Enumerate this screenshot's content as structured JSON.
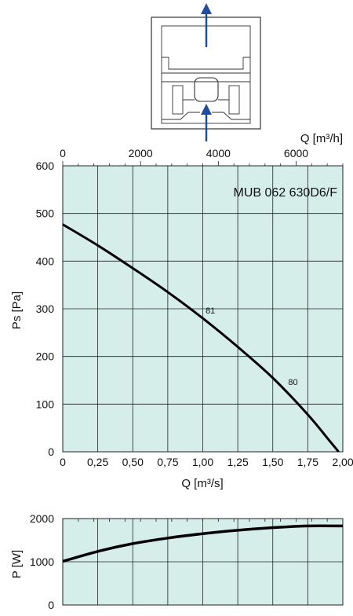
{
  "colors": {
    "plot_bg": "#d5eeea",
    "grid": "#222222",
    "curve": "#000000",
    "arrow": "#1f4f9c",
    "unit_outline": "#333333"
  },
  "unit_drawing": {
    "icon": "fan-unit-airflow-diagram"
  },
  "chart_data": [
    {
      "type": "line",
      "title": "MUB 062 630D6/F",
      "xlabel": "Q [m³/s]",
      "ylabel": "Ps [Pa]",
      "x2label": "Q [m³/h]",
      "xlim": [
        0,
        2.0
      ],
      "ylim": [
        0,
        600
      ],
      "x2lim": [
        0,
        7200
      ],
      "grid": true,
      "x_ticks": [
        "0",
        "0,25",
        "0,50",
        "0,75",
        "1,00",
        "1,25",
        "1,50",
        "1,75",
        "2,00"
      ],
      "y_ticks": [
        "0",
        "100",
        "200",
        "300",
        "400",
        "500",
        "600"
      ],
      "x2_ticks": [
        "0",
        "2000",
        "4000",
        "6000"
      ],
      "series": [
        {
          "x": [
            0,
            0.25,
            0.5,
            0.75,
            1.0,
            1.25,
            1.5,
            1.75,
            1.9,
            1.97
          ],
          "y": [
            477,
            433,
            385,
            335,
            280,
            220,
            155,
            78,
            25,
            0
          ]
        }
      ],
      "annotations": [
        {
          "text": "81",
          "x": 1.02,
          "y": 290
        },
        {
          "text": "80",
          "x": 1.61,
          "y": 140
        }
      ]
    },
    {
      "type": "line",
      "ylabel": "P [W]",
      "xlim": [
        0,
        2.0
      ],
      "ylim": [
        0,
        2000
      ],
      "grid": true,
      "y_ticks": [
        "0",
        "1000",
        "2000"
      ],
      "series": [
        {
          "x": [
            0,
            0.25,
            0.5,
            0.75,
            1.0,
            1.25,
            1.5,
            1.75,
            2.0
          ],
          "y": [
            1010,
            1240,
            1420,
            1550,
            1650,
            1730,
            1790,
            1830,
            1830
          ]
        }
      ]
    }
  ]
}
